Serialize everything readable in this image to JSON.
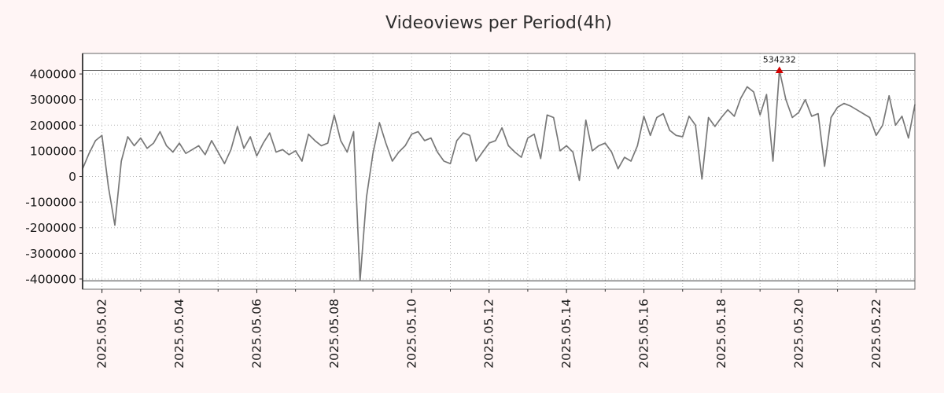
{
  "title": "Videoviews per Period(4h)",
  "colors": {
    "background": "#fff5f5",
    "plot_bg": "#ffffff",
    "line": "#787878",
    "grid": "#b5b5b5",
    "border": "#666666",
    "axis": "#2f2f2f",
    "hline": "#3c3c3c",
    "text": "#1a1a1a",
    "annotation": "#d40000"
  },
  "chart_data": {
    "type": "line",
    "title": "Videoviews per Period(4h)",
    "series_name": "videoviews",
    "x_start": "2025-05-01 12:00",
    "interval_hours": 4,
    "ylim": [
      -440000,
      480000
    ],
    "yticks": [
      -400000,
      -300000,
      -200000,
      -100000,
      0,
      100000,
      200000,
      300000,
      400000
    ],
    "clip_lines": [
      414000,
      -407000
    ],
    "grid": "dotted",
    "legend": "none",
    "minor_tick_every_hours": 24,
    "minor_tick_start_hour": 12,
    "xticks": [
      {
        "hour": 12,
        "label": "2025.05.02"
      },
      {
        "hour": 60,
        "label": "2025.05.04"
      },
      {
        "hour": 108,
        "label": "2025.05.06"
      },
      {
        "hour": 156,
        "label": "2025.05.08"
      },
      {
        "hour": 204,
        "label": "2025.05.10"
      },
      {
        "hour": 252,
        "label": "2025.05.12"
      },
      {
        "hour": 300,
        "label": "2025.05.14"
      },
      {
        "hour": 348,
        "label": "2025.05.16"
      },
      {
        "hour": 396,
        "label": "2025.05.18"
      },
      {
        "hour": 444,
        "label": "2025.05.20"
      },
      {
        "hour": 492,
        "label": "2025.05.22"
      }
    ],
    "peak": {
      "index": 108,
      "value": 534232,
      "label": "534232"
    },
    "values": [
      30000,
      90000,
      140000,
      160000,
      -40000,
      -190000,
      60000,
      155000,
      120000,
      150000,
      110000,
      130000,
      175000,
      120000,
      95000,
      130000,
      90000,
      105000,
      120000,
      85000,
      140000,
      95000,
      50000,
      105000,
      195000,
      110000,
      155000,
      80000,
      130000,
      170000,
      95000,
      105000,
      85000,
      100000,
      60000,
      165000,
      140000,
      120000,
      130000,
      240000,
      140000,
      95000,
      175000,
      -407000,
      -80000,
      90000,
      210000,
      130000,
      60000,
      95000,
      120000,
      165000,
      175000,
      140000,
      150000,
      95000,
      60000,
      50000,
      140000,
      170000,
      160000,
      60000,
      95000,
      130000,
      140000,
      190000,
      120000,
      95000,
      75000,
      150000,
      165000,
      70000,
      240000,
      230000,
      100000,
      120000,
      95000,
      -15000,
      220000,
      100000,
      120000,
      130000,
      95000,
      30000,
      75000,
      60000,
      120000,
      235000,
      160000,
      230000,
      245000,
      180000,
      160000,
      155000,
      235000,
      200000,
      -10000,
      230000,
      195000,
      230000,
      260000,
      235000,
      305000,
      350000,
      330000,
      240000,
      320000,
      60000,
      534232,
      300000,
      230000,
      250000,
      300000,
      235000,
      245000,
      40000,
      230000,
      270000,
      285000,
      275000,
      260000,
      245000,
      230000,
      160000,
      200000,
      315000,
      200000,
      235000,
      150000,
      280000
    ]
  }
}
